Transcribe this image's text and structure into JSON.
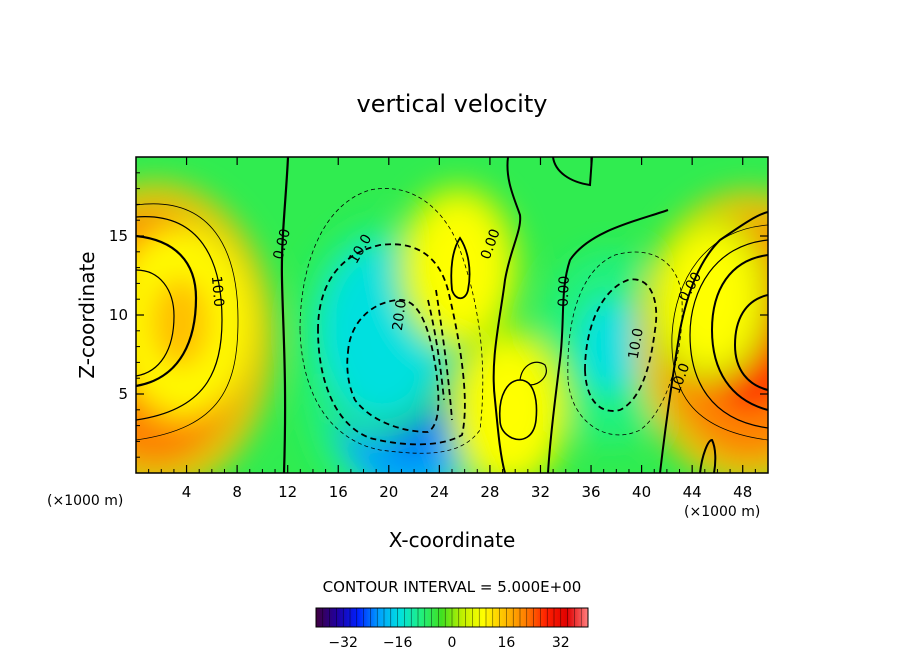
{
  "chart_data": {
    "type": "heatmap",
    "subtype": "filled-contour",
    "title": "vertical velocity",
    "xlabel": "X-coordinate",
    "ylabel": "Z-coordinate",
    "x_unit_label": "(x1000 m)",
    "z_unit_label": "(x1000 m)",
    "xlim": [
      0,
      50
    ],
    "zlim": [
      0,
      20
    ],
    "x_ticks": [
      "4",
      "8",
      "12",
      "16",
      "20",
      "24",
      "28",
      "32",
      "36",
      "40",
      "44",
      "48"
    ],
    "z_ticks": [
      "5",
      "10",
      "15"
    ],
    "contour_interval_text": "CONTOUR INTERVAL = 5.000E+00",
    "contour_interval": 5,
    "colorbar": {
      "min": -40,
      "max": 40,
      "ticks": [
        "-32",
        "-16",
        "0",
        "16",
        "32"
      ],
      "colors": [
        "#400040",
        "#2000a0",
        "#0020ff",
        "#00a0ff",
        "#00e0e0",
        "#20f080",
        "#40e020",
        "#c0f000",
        "#ffff00",
        "#ffc000",
        "#ff8000",
        "#ff2000",
        "#e00000",
        "#ff8080"
      ]
    },
    "features": [
      {
        "x": 1.5,
        "z": 8.5,
        "value": 30,
        "kind": "updraft"
      },
      {
        "x": 3.5,
        "z": 9.5,
        "value": 15,
        "kind": "updraft"
      },
      {
        "x": 21.5,
        "z": 5.5,
        "value": -25,
        "kind": "downdraft"
      },
      {
        "x": 19.5,
        "z": 9,
        "value": -18,
        "kind": "downdraft"
      },
      {
        "x": 37.5,
        "z": 8,
        "value": -15,
        "kind": "downdraft"
      },
      {
        "x": 25.5,
        "z": 13,
        "value": 12,
        "kind": "updraft"
      },
      {
        "x": 29.5,
        "z": 4,
        "value": 12,
        "kind": "updraft"
      },
      {
        "x": 48.5,
        "z": 8.5,
        "value": 28,
        "kind": "updraft"
      },
      {
        "x": 45.5,
        "z": 11,
        "value": 12,
        "kind": "updraft"
      }
    ],
    "contour_labels": [
      {
        "text": "0.00",
        "x": 11.5,
        "z": 14.5,
        "angle": -75
      },
      {
        "text": "10.0",
        "x": 6.5,
        "z": 11.5,
        "angle": 85
      },
      {
        "text": "10.0",
        "x": 17.7,
        "z": 14.2,
        "angle": -60
      },
      {
        "text": "20.0",
        "x": 20.8,
        "z": 10,
        "angle": -82
      },
      {
        "text": "0.00",
        "x": 28,
        "z": 14.5,
        "angle": -70
      },
      {
        "text": "0.00",
        "x": 33.8,
        "z": 11.5,
        "angle": -88
      },
      {
        "text": "10.0",
        "x": 39.5,
        "z": 8.2,
        "angle": -80
      },
      {
        "text": "0.00",
        "x": 43.8,
        "z": 11.8,
        "angle": -60
      },
      {
        "text": "10.0",
        "x": 43,
        "z": 6,
        "angle": -70
      }
    ]
  }
}
